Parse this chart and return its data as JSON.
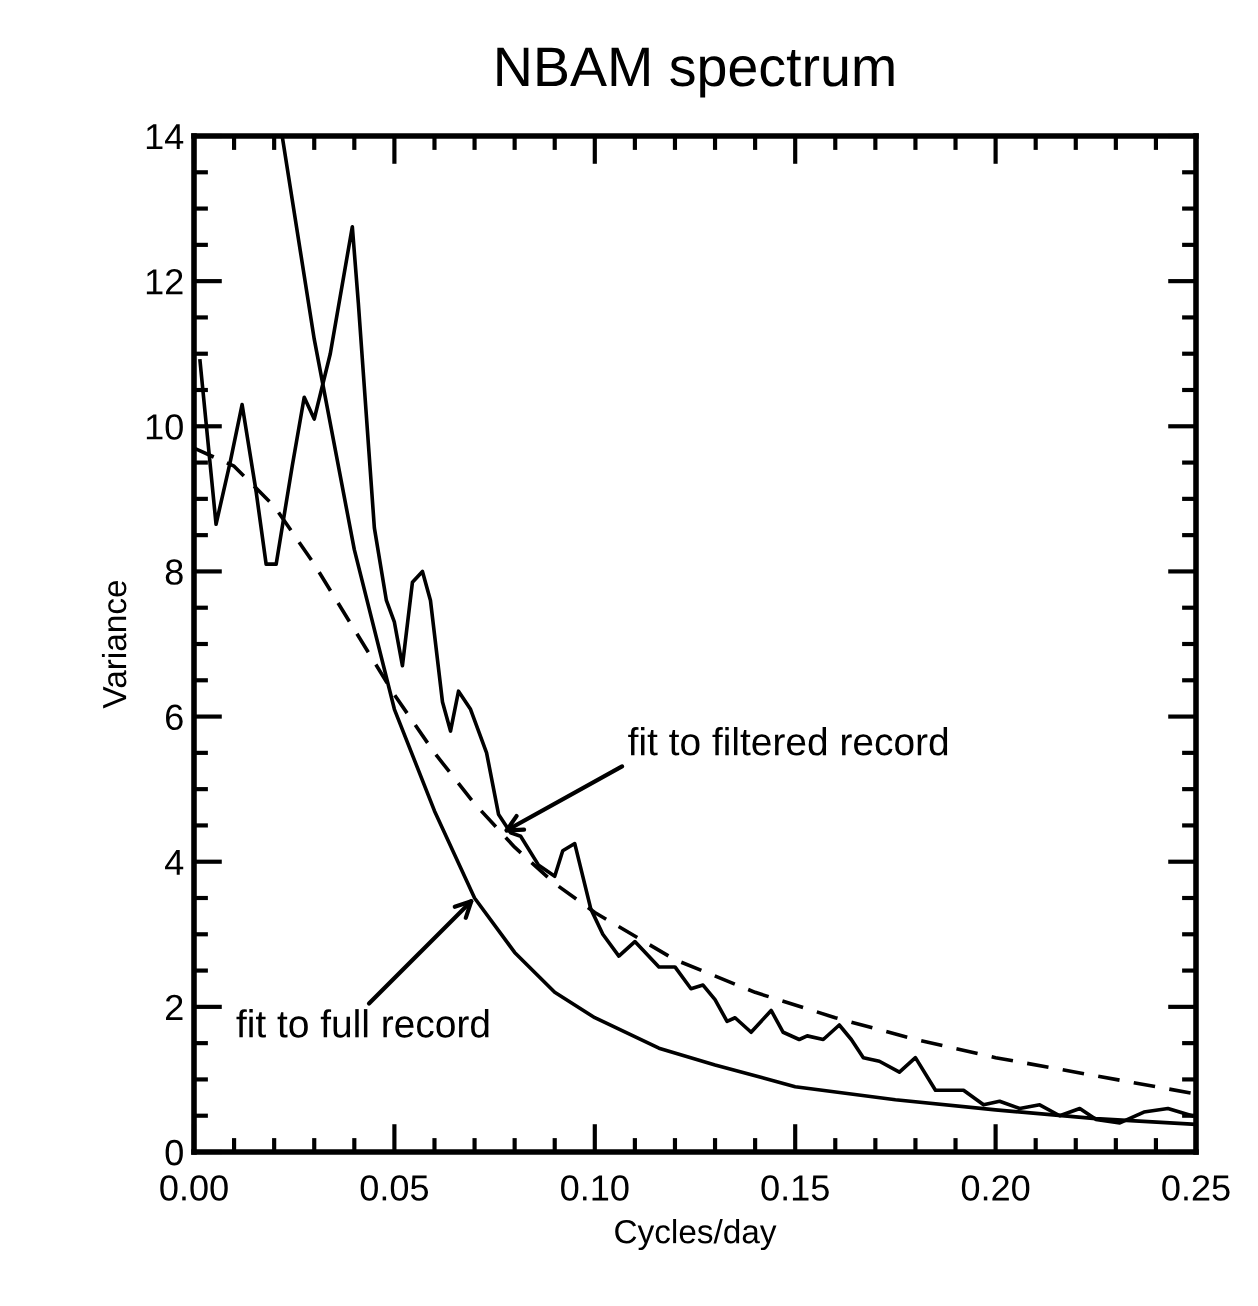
{
  "chart_data": {
    "type": "line",
    "title": "NBAM spectrum",
    "xlabel": "Cycles/day",
    "ylabel": "Variance",
    "xlim": [
      0,
      0.25
    ],
    "ylim": [
      0,
      14
    ],
    "xticks": [
      {
        "value": 0,
        "label": "0.00"
      },
      {
        "value": 0.05,
        "label": "0.05"
      },
      {
        "value": 0.1,
        "label": "0.10"
      },
      {
        "value": 0.15,
        "label": "0.15"
      },
      {
        "value": 0.2,
        "label": "0.20"
      },
      {
        "value": 0.25,
        "label": "0.25"
      }
    ],
    "yticks": [
      0,
      2,
      4,
      6,
      8,
      10,
      12,
      14
    ],
    "grid": false,
    "legend": false,
    "marker": "none",
    "series": [
      {
        "color": "#000000",
        "line_style": "solid",
        "x": [
          0.0015,
          0.0055,
          0.009,
          0.012,
          0.0155,
          0.018,
          0.0205,
          0.0245,
          0.0275,
          0.03,
          0.034,
          0.0395,
          0.041,
          0.045,
          0.048,
          0.05,
          0.052,
          0.0545,
          0.057,
          0.059,
          0.062,
          0.064,
          0.066,
          0.069,
          0.073,
          0.076,
          0.079,
          0.0815,
          0.086,
          0.09,
          0.092,
          0.095,
          0.099,
          0.102,
          0.106,
          0.11,
          0.116,
          0.12,
          0.124,
          0.127,
          0.13,
          0.133,
          0.135,
          0.139,
          0.144,
          0.147,
          0.151,
          0.153,
          0.157,
          0.161,
          0.164,
          0.167,
          0.171,
          0.176,
          0.18,
          0.185,
          0.192,
          0.197,
          0.201,
          0.206,
          0.211,
          0.216,
          0.221,
          0.225,
          0.231,
          0.237,
          0.243,
          0.249
        ],
        "values": [
          10.9,
          8.65,
          9.5,
          10.3,
          9.1,
          8.1,
          8.1,
          9.45,
          10.4,
          10.1,
          11.0,
          12.75,
          11.7,
          8.6,
          7.6,
          7.3,
          6.7,
          7.85,
          8.0,
          7.6,
          6.2,
          5.8,
          6.35,
          6.1,
          5.5,
          4.65,
          4.4,
          4.35,
          3.95,
          3.8,
          4.15,
          4.25,
          3.35,
          3.0,
          2.7,
          2.9,
          2.55,
          2.55,
          2.25,
          2.3,
          2.1,
          1.8,
          1.85,
          1.65,
          1.95,
          1.65,
          1.55,
          1.6,
          1.55,
          1.75,
          1.55,
          1.3,
          1.25,
          1.1,
          1.3,
          0.85,
          0.85,
          0.65,
          0.7,
          0.6,
          0.65,
          0.5,
          0.6,
          0.45,
          0.4,
          0.55,
          0.6,
          0.5
        ]
      },
      {
        "color": "#000000",
        "line_style": "solid",
        "x": [
          0.022,
          0.03,
          0.04,
          0.05,
          0.06,
          0.07,
          0.08,
          0.09,
          0.1,
          0.116,
          0.13,
          0.15,
          0.175,
          0.2,
          0.225,
          0.25
        ],
        "values": [
          14.0,
          11.2,
          8.3,
          6.1,
          4.7,
          3.5,
          2.75,
          2.2,
          1.85,
          1.43,
          1.2,
          0.9,
          0.72,
          0.58,
          0.46,
          0.38
        ]
      },
      {
        "color": "#000000",
        "line_style": "dashed",
        "x": [
          0,
          0.01,
          0.02,
          0.03,
          0.04,
          0.05,
          0.06,
          0.07,
          0.08,
          0.09,
          0.1,
          0.12,
          0.14,
          0.16,
          0.18,
          0.2,
          0.225,
          0.25
        ],
        "values": [
          9.7,
          9.45,
          8.9,
          8.1,
          7.2,
          6.3,
          5.5,
          4.8,
          4.2,
          3.7,
          3.3,
          2.65,
          2.2,
          1.85,
          1.55,
          1.3,
          1.05,
          0.8
        ]
      }
    ],
    "annotations": [
      {
        "text": "fit to filtered record",
        "x": 0.077,
        "y": 4.4
      },
      {
        "text": "fit to full record",
        "x": 0.07,
        "y": 3.5
      }
    ]
  }
}
